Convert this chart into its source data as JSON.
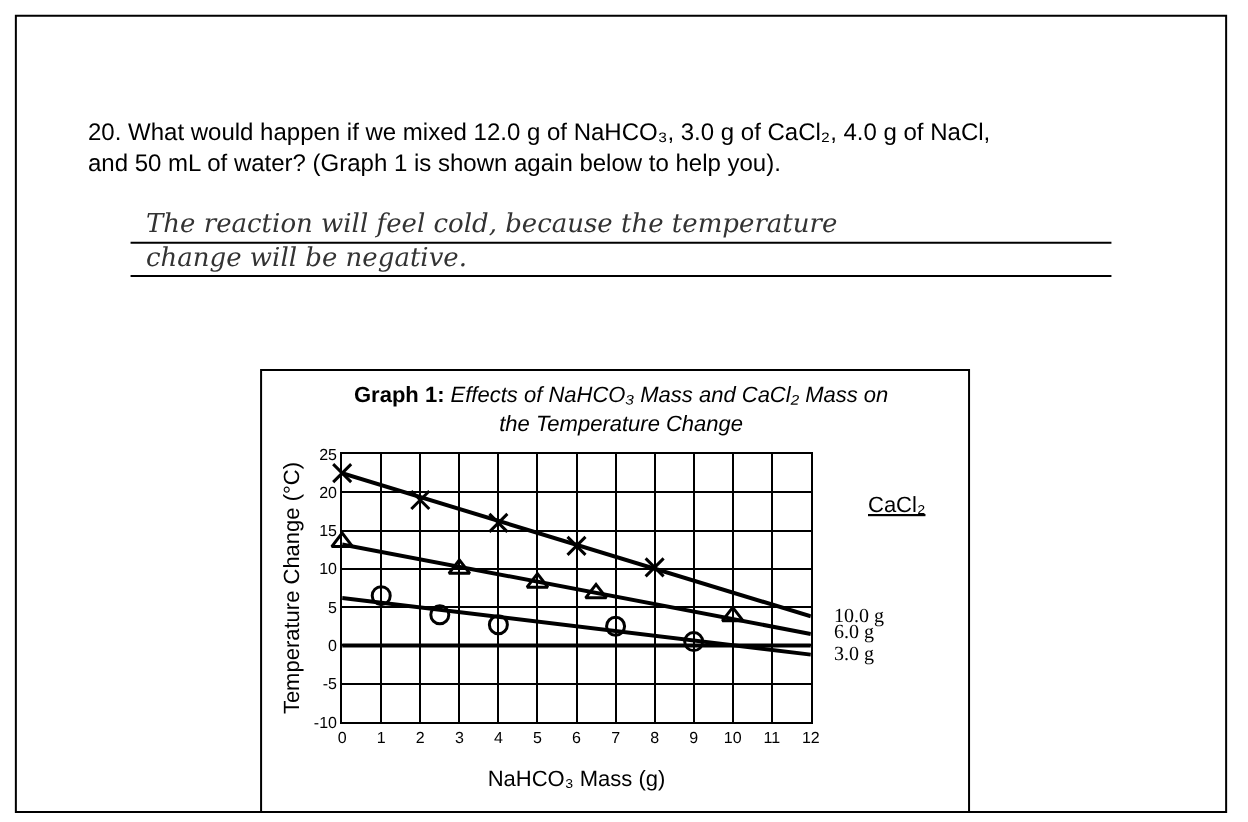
{
  "chart_data": {
    "type": "scatter",
    "title": "Graph 1:",
    "subtitle": "Effects of NaHCO₃ Mass and CaCl₂ Mass on the Temperature Change",
    "xlabel": "NaHCO₃ Mass (g)",
    "ylabel": "Temperature Change (°C)",
    "legend_title": "CaCl₂",
    "annotations": [
      "20. What would happen if we mixed 12.0 g of NaHCO₃, 3.0 g of CaCl₂, 4.0 g of NaCl, and 50 mL of water? (Graph 1 is shown again below to help you).",
      "The reaction will feel cold, because the temperature change will be negative."
    ],
    "xlim": [
      0,
      12
    ],
    "ylim": [
      -10,
      25
    ],
    "xticks": [
      0,
      1,
      2,
      3,
      4,
      5,
      6,
      7,
      8,
      9,
      10,
      11,
      12
    ],
    "yticks": [
      -10,
      -5,
      0,
      5,
      10,
      15,
      20,
      25
    ],
    "grid": true,
    "series": [
      {
        "color": "#000000",
        "marker": "cross",
        "x": [
          0,
          2,
          4,
          6,
          8
        ],
        "values": [
          22.5,
          19,
          16,
          13,
          10.2
        ]
      },
      {
        "color": "#000000",
        "marker": "triangle",
        "x": [
          0,
          3,
          5,
          6.5,
          10
        ],
        "values": [
          13.5,
          10,
          8.2,
          6.8,
          3.8
        ]
      },
      {
        "color": "#000000",
        "marker": "circle",
        "x": [
          1,
          2.5,
          4,
          7,
          9
        ],
        "values": [
          6.5,
          4,
          2.7,
          2.5,
          0.5
        ]
      },
      {
        "type": "line",
        "name": "10.0 g",
        "color": "#000000",
        "marker": "none",
        "x": [
          0,
          12
        ],
        "values": [
          22.5,
          3.8
        ]
      },
      {
        "type": "line",
        "name": "6.0 g",
        "color": "#000000",
        "marker": "none",
        "x": [
          0,
          12
        ],
        "values": [
          13.2,
          1.5
        ]
      },
      {
        "type": "line",
        "name": "3.0 g",
        "color": "#000000",
        "marker": "none",
        "x": [
          0,
          12
        ],
        "values": [
          6.2,
          -1.2
        ]
      }
    ]
  }
}
